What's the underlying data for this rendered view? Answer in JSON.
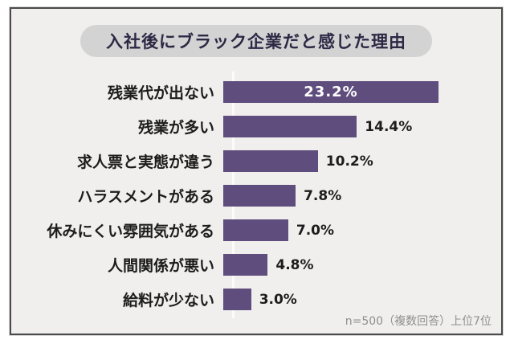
{
  "title": "入社後にブラック企業だと感じた理由",
  "footnote": "n=500（複数回答）上位7位",
  "colors": {
    "background": "#f0efee",
    "frame_border": "#4a4a4a",
    "title_pill_bg": "#d3d3d3",
    "title_text": "#2d2844",
    "bar": "#5e4d7d",
    "category_label_text": "#1c1c1c",
    "value_label_text": "#1c1c1c",
    "value_label_inside_text": "#ffffff",
    "footnote_text": "#8f8f8f",
    "axis_line": "#fbfbfa"
  },
  "chart_data": {
    "type": "bar",
    "orientation": "horizontal",
    "title": "入社後にブラック企業だと感じた理由",
    "categories": [
      "残業代が出ない",
      "残業が多い",
      "求人票と実態が違う",
      "ハラスメントがある",
      "休みにくい雰囲気がある",
      "人間関係が悪い",
      "給料が少ない"
    ],
    "values": [
      23.2,
      14.4,
      10.2,
      7.8,
      7.0,
      4.8,
      3.0
    ],
    "value_labels": [
      "23.2%",
      "14.4%",
      "10.2%",
      "7.8%",
      "7.0%",
      "4.8%",
      "3.0%"
    ],
    "xlabel": "",
    "ylabel": "",
    "xlim": [
      0,
      23.2
    ],
    "grid": false,
    "legend": false,
    "note": "n=500（複数回答）上位7位"
  }
}
